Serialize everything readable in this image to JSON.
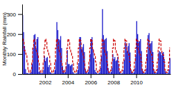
{
  "chart_data": {
    "type": "bar",
    "ylabel": "Monthly Rainfall (mm)",
    "x": [
      2000,
      2000.083333,
      2000.166667,
      2000.25,
      2000.333333,
      2000.416667,
      2000.5,
      2000.583333,
      2000.666667,
      2000.75,
      2000.833333,
      2000.916667,
      2001,
      2001.083333,
      2001.166667,
      2001.25,
      2001.333333,
      2001.416667,
      2001.5,
      2001.583333,
      2001.666667,
      2001.75,
      2001.833333,
      2001.916667,
      2002,
      2002.083333,
      2002.166667,
      2002.25,
      2002.333333,
      2002.416667,
      2002.5,
      2002.583333,
      2002.666667,
      2002.75,
      2002.833333,
      2002.916667,
      2003,
      2003.083333,
      2003.166667,
      2003.25,
      2003.333333,
      2003.416667,
      2003.5,
      2003.583333,
      2003.666667,
      2003.75,
      2003.833333,
      2003.916667,
      2004,
      2004.083333,
      2004.166667,
      2004.25,
      2004.333333,
      2004.416667,
      2004.5,
      2004.583333,
      2004.666667,
      2004.75,
      2004.833333,
      2004.916667,
      2005,
      2005.083333,
      2005.166667,
      2005.25,
      2005.333333,
      2005.416667,
      2005.5,
      2005.583333,
      2005.666667,
      2005.75,
      2005.833333,
      2005.916667,
      2006,
      2006.083333,
      2006.166667,
      2006.25,
      2006.333333,
      2006.416667,
      2006.5,
      2006.583333,
      2006.666667,
      2006.75,
      2006.833333,
      2006.916667,
      2007,
      2007.083333,
      2007.166667,
      2007.25,
      2007.333333,
      2007.416667,
      2007.5,
      2007.583333,
      2007.666667,
      2007.75,
      2007.833333,
      2007.916667,
      2008,
      2008.083333,
      2008.166667,
      2008.25,
      2008.333333,
      2008.416667,
      2008.5,
      2008.583333,
      2008.666667,
      2008.75,
      2008.833333,
      2008.916667,
      2009,
      2009.083333,
      2009.166667,
      2009.25,
      2009.333333,
      2009.416667,
      2009.5,
      2009.583333,
      2009.666667,
      2009.75,
      2009.833333,
      2009.916667,
      2010,
      2010.083333,
      2010.166667,
      2010.25,
      2010.333333,
      2010.416667,
      2010.5,
      2010.583333,
      2010.666667,
      2010.75,
      2010.833333,
      2010.916667,
      2011,
      2011.083333,
      2011.166667,
      2011.25,
      2011.333333,
      2011.416667,
      2011.5,
      2011.583333,
      2011.666667,
      2011.75,
      2011.833333,
      2011.916667,
      2012,
      2012.083333,
      2012.166667,
      2012.25,
      2012.333333,
      2012.416667,
      2012.5,
      2012.583333,
      2012.666667,
      2012.75,
      2012.833333,
      2012.916667
    ],
    "series": [
      {
        "type": "bar",
        "color": "#2222cc",
        "values": [
          295,
          210,
          140,
          25,
          5,
          5,
          3,
          2,
          5,
          10,
          50,
          130,
          195,
          200,
          130,
          175,
          185,
          10,
          15,
          5,
          5,
          5,
          20,
          90,
          65,
          80,
          85,
          35,
          45,
          10,
          5,
          3,
          2,
          5,
          20,
          70,
          260,
          220,
          175,
          170,
          190,
          130,
          40,
          20,
          5,
          10,
          40,
          120,
          50,
          50,
          40,
          45,
          50,
          10,
          3,
          2,
          2,
          5,
          20,
          55,
          185,
          185,
          125,
          135,
          150,
          110,
          25,
          10,
          3,
          10,
          35,
          100,
          175,
          185,
          125,
          80,
          20,
          10,
          5,
          2,
          3,
          8,
          30,
          90,
          325,
          195,
          170,
          175,
          180,
          115,
          30,
          10,
          3,
          10,
          32,
          100,
          75,
          85,
          65,
          70,
          85,
          50,
          10,
          5,
          2,
          5,
          20,
          70,
          160,
          150,
          115,
          140,
          155,
          108,
          22,
          8,
          3,
          8,
          28,
          95,
          265,
          200,
          160,
          165,
          175,
          115,
          25,
          8,
          3,
          8,
          28,
          100,
          195,
          205,
          150,
          155,
          165,
          110,
          22,
          8,
          3,
          8,
          28,
          105,
          115,
          110,
          95,
          105,
          110,
          75,
          15,
          5,
          2,
          5,
          22,
          80
        ]
      },
      {
        "type": "step",
        "color": "#cc0000",
        "line_style": "dashed",
        "values": [
          175,
          165,
          120,
          105,
          95,
          60,
          20,
          10,
          8,
          20,
          60,
          130,
          175,
          165,
          120,
          105,
          95,
          60,
          20,
          10,
          8,
          20,
          60,
          130,
          175,
          165,
          120,
          105,
          95,
          60,
          20,
          10,
          8,
          20,
          60,
          130,
          175,
          165,
          120,
          105,
          95,
          60,
          20,
          10,
          8,
          20,
          60,
          130,
          175,
          165,
          120,
          105,
          95,
          60,
          20,
          10,
          8,
          20,
          60,
          130,
          175,
          165,
          120,
          105,
          95,
          60,
          20,
          10,
          8,
          20,
          60,
          130,
          175,
          165,
          120,
          105,
          95,
          60,
          20,
          10,
          8,
          20,
          60,
          130,
          175,
          165,
          120,
          105,
          95,
          60,
          20,
          10,
          8,
          20,
          60,
          130,
          175,
          165,
          120,
          105,
          95,
          60,
          20,
          10,
          8,
          20,
          60,
          130,
          175,
          165,
          120,
          105,
          95,
          60,
          20,
          10,
          8,
          20,
          60,
          130,
          175,
          165,
          120,
          105,
          95,
          60,
          20,
          10,
          8,
          20,
          60,
          130,
          175,
          165,
          120,
          105,
          95,
          60,
          20,
          10,
          8,
          20,
          60,
          130,
          175,
          165,
          120,
          105,
          95,
          60,
          20,
          10,
          8,
          20,
          60,
          130
        ]
      }
    ],
    "xlim": [
      2000.0,
      2013.0
    ],
    "xticks": [
      2002,
      2004,
      2006,
      2008,
      2010
    ],
    "ylim": [
      0,
      350
    ],
    "yticks": [
      0,
      100,
      200,
      300
    ],
    "grid": false
  }
}
